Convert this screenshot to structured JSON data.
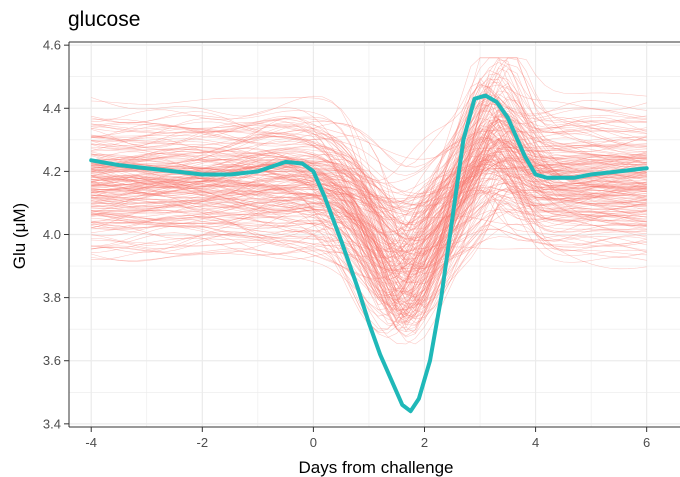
{
  "chart_data": {
    "type": "line",
    "title": "glucose",
    "xlabel": "Days from challenge",
    "ylabel": "Glu (μM)",
    "xlim": [
      -4.4,
      6.6
    ],
    "ylim": [
      3.39,
      4.61
    ],
    "x_ticks": [
      -4,
      -2,
      0,
      2,
      4,
      6
    ],
    "x_tick_labels": [
      "-4",
      "-2",
      "0",
      "2",
      "4",
      "6"
    ],
    "y_ticks": [
      3.4,
      3.6,
      3.8,
      4.0,
      4.2,
      4.4,
      4.6
    ],
    "y_tick_labels": [
      "3.4",
      "3.6",
      "3.8",
      "4.0",
      "4.2",
      "4.4",
      "4.6"
    ],
    "grid": true,
    "legend": "none",
    "colors": {
      "individuals": "#f8766d",
      "mean": "#1fb8b8",
      "grid": "#ebebeb",
      "axis": "#333333"
    },
    "series": [
      {
        "role": "individual-trajectories",
        "count": 200,
        "x_range": [
          -4,
          6
        ],
        "baseline_range": [
          3.88,
          4.45
        ],
        "dip_center_range": [
          1.2,
          2.0
        ],
        "dip_depth_range": [
          0.05,
          0.6
        ],
        "peak_center_range": [
          2.9,
          3.6
        ],
        "peak_height_range": [
          0.0,
          0.3
        ]
      },
      {
        "role": "mean",
        "x": [
          -4.0,
          -3.5,
          -3.0,
          -2.5,
          -2.0,
          -1.5,
          -1.0,
          -0.5,
          -0.2,
          0.0,
          0.2,
          0.5,
          0.8,
          1.0,
          1.2,
          1.4,
          1.6,
          1.75,
          1.9,
          2.1,
          2.3,
          2.5,
          2.7,
          2.9,
          3.1,
          3.3,
          3.5,
          3.8,
          4.0,
          4.2,
          4.4,
          4.7,
          5.0,
          5.5,
          6.0
        ],
        "y": [
          4.235,
          4.22,
          4.21,
          4.2,
          4.19,
          4.19,
          4.2,
          4.23,
          4.225,
          4.2,
          4.12,
          3.98,
          3.83,
          3.72,
          3.62,
          3.54,
          3.46,
          3.44,
          3.48,
          3.6,
          3.8,
          4.05,
          4.3,
          4.43,
          4.44,
          4.42,
          4.37,
          4.25,
          4.19,
          4.18,
          4.18,
          4.18,
          4.19,
          4.2,
          4.21
        ]
      }
    ]
  }
}
